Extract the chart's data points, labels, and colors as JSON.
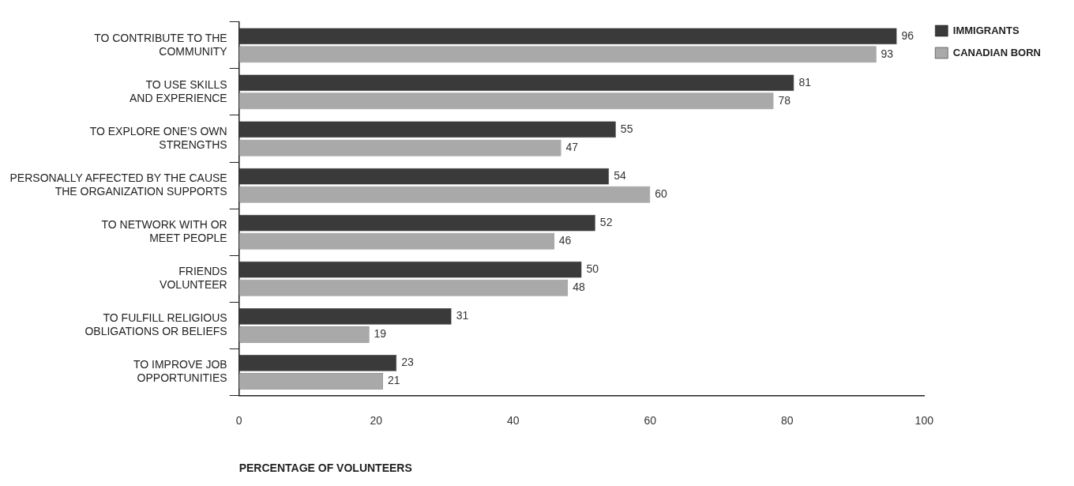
{
  "chart_data": {
    "type": "bar",
    "orientation": "horizontal",
    "xlabel": "PERCENTAGE OF VOLUNTEERS",
    "categories": [
      "TO CONTRIBUTE TO THE\nCOMMUNITY",
      "TO USE SKILLS\nAND EXPERIENCE",
      "TO EXPLORE ONE’S OWN\nSTRENGTHS",
      "PERSONALLY AFFECTED BY THE CAUSE\nTHE ORGANIZATION SUPPORTS",
      "TO NETWORK WITH OR\nMEET PEOPLE",
      "FRIENDS\nVOLUNTEER",
      "TO FULFILL RELIGIOUS\nOBLIGATIONS OR BELIEFS",
      "TO IMPROVE JOB\nOPPORTUNITIES"
    ],
    "series": [
      {
        "name": "IMMIGRANTS",
        "color": "#3a3a3a",
        "values": [
          96,
          81,
          55,
          54,
          52,
          50,
          31,
          23
        ]
      },
      {
        "name": "CANADIAN BORN",
        "color": "#a9a9a9",
        "values": [
          93,
          78,
          47,
          60,
          46,
          48,
          19,
          21
        ]
      }
    ],
    "xlim": [
      0,
      100
    ],
    "xticks": [
      0,
      20,
      40,
      60,
      80,
      100
    ],
    "data_labels": true,
    "grid": false,
    "legend": "top right"
  }
}
